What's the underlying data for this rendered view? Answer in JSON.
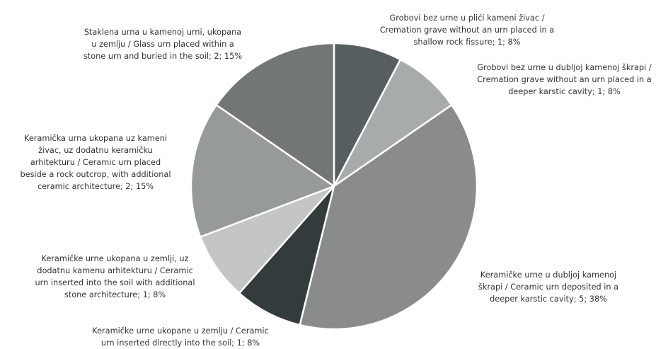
{
  "chart_data": {
    "type": "pie",
    "start_angle_deg": -90,
    "direction": "clockwise",
    "slices": [
      {
        "label_lines": [
          "Grobovi bez urne u plićí kameni živac /",
          "Cremation grave without an urn placed in a",
          "shallow rock fissure; 1; 8%"
        ],
        "label": "Grobovi bez urne u plićí kameni živac / Cremation grave without an urn placed in a shallow rock fissure",
        "value": 1,
        "percent": "8%",
        "color": "#565e60"
      },
      {
        "label_lines": [
          "Grobovi bez urne u dubljoj kamenoj škrapi /",
          "Cremation grave without an urn placed in a",
          "deeper karstic cavity; 1; 8%"
        ],
        "label": "Grobovi bez urne u dubljoj kamenoj škrapi / Cremation grave without an urn placed in a deeper karstic cavity",
        "value": 1,
        "percent": "8%",
        "color": "#a8abab"
      },
      {
        "label_lines": [
          "Keramičke urne u dubljoj kamenoj",
          "škrapi / Ceramic urn deposited in a",
          "deeper karstic cavity; 5; 38%"
        ],
        "label": "Keramičke urne u dubljoj kamenoj škrapi / Ceramic urn deposited in a deeper karstic cavity",
        "value": 5,
        "percent": "38%",
        "color": "#8a8c8c"
      },
      {
        "label_lines": [
          "Keramičke urne  ukopane u zemlju / Ceramic",
          "urn inserted directly into the soil; 1; 8%"
        ],
        "label": "Keramičke urne  ukopane u zemlju / Ceramic urn inserted directly into the soil",
        "value": 1,
        "percent": "8%",
        "color": "#333b3c"
      },
      {
        "label_lines": [
          "Keramičke urne ukopana u zemlji, uz",
          "dodatnu kamenu arhitekturu / Ceramic",
          "urn inserted into the soil with additional",
          "stone architecture; 1; 8%"
        ],
        "label": "Keramičke urne ukopana u zemlji, uz dodatnu kamenu arhitekturu / Ceramic urn inserted into the soil with additional stone architecture",
        "value": 1,
        "percent": "8%",
        "color": "#c4c5c5"
      },
      {
        "label_lines": [
          "Keramička urna ukopana uz kameni",
          "živac, uz dodatnu keramičku",
          "arhitekturu / Ceramic urn placed",
          "beside a rock outcrop, with additional",
          "ceramic architecture; 2; 15%"
        ],
        "label": "Keramička urna ukopana uz kameni živac, uz dodatnu keramičku arhitekturu / Ceramic urn placed beside a rock outcrop, with additional ceramic architecture",
        "value": 2,
        "percent": "15%",
        "color": "#979a9b"
      },
      {
        "label_lines": [
          "Staklena urna u kamenoj urni, ukopana",
          "u zemlju / Glass urn placed within a",
          "stone urn and buried in the soil; 2; 15%"
        ],
        "label": "Staklena urna u kamenoj urni, ukopana u zemlju / Glass urn placed within a stone urn and buried in the soil",
        "value": 2,
        "percent": "15%",
        "color": "#727676"
      }
    ]
  }
}
